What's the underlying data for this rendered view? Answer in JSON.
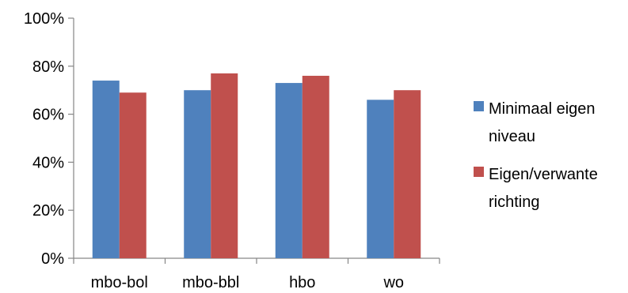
{
  "chart_data": {
    "type": "bar",
    "title": "",
    "xlabel": "",
    "ylabel": "",
    "categories": [
      "mbo-bol",
      "mbo-bbl",
      "hbo",
      "wo"
    ],
    "series": [
      {
        "name": "Minimaal eigen niveau",
        "legend_lines": [
          "Minimaal eigen",
          "niveau"
        ],
        "color": "#4f81bd",
        "values": [
          74,
          70,
          73,
          66
        ]
      },
      {
        "name": "Eigen/verwante richting",
        "legend_lines": [
          "Eigen/verwante",
          "richting"
        ],
        "color": "#c0504d",
        "values": [
          69,
          77,
          76,
          70
        ]
      }
    ],
    "ylim": [
      0,
      100
    ],
    "yticks": [
      0,
      20,
      40,
      60,
      80,
      100
    ],
    "ytick_labels": [
      "0%",
      "20%",
      "40%",
      "60%",
      "80%",
      "100%"
    ],
    "grid": false,
    "legend_position": "right"
  }
}
